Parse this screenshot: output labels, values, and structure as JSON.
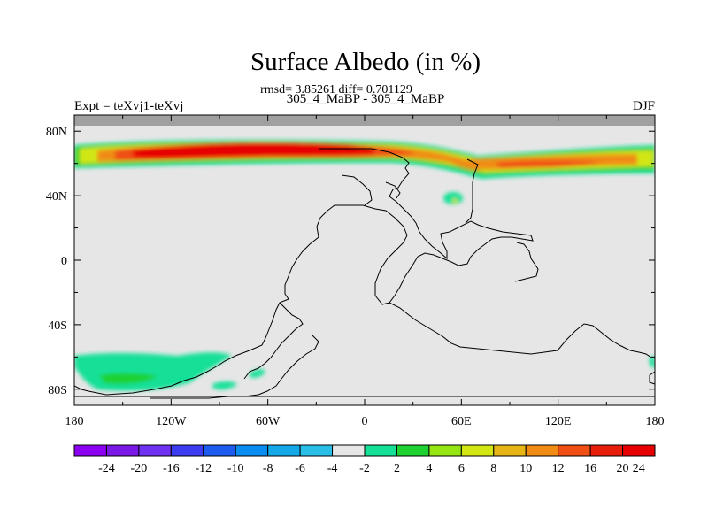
{
  "title": "Surface Albedo (in %)",
  "stats": "rmsd= 3.85261 diff= 0.701129",
  "subtitle": "305_4_MaBP - 305_4_MaBP",
  "left_label": "Expt = teXvj1-teXvj",
  "right_label": "DJF",
  "chart_data": {
    "type": "heatmap",
    "projection": "cylindrical-equidistant",
    "lon_range": [
      -180,
      180
    ],
    "lat_range": [
      -90,
      90
    ],
    "x_ticks": [
      {
        "lon": -180,
        "label": "180"
      },
      {
        "lon": -120,
        "label": "120W"
      },
      {
        "lon": -60,
        "label": "60W"
      },
      {
        "lon": 0,
        "label": "0"
      },
      {
        "lon": 60,
        "label": "60E"
      },
      {
        "lon": 120,
        "label": "120E"
      },
      {
        "lon": 180,
        "label": "180"
      }
    ],
    "y_ticks": [
      {
        "lat": 80,
        "label": "80N"
      },
      {
        "lat": 40,
        "label": "40N"
      },
      {
        "lat": 0,
        "label": "0"
      },
      {
        "lat": -40,
        "label": "40S"
      },
      {
        "lat": -80,
        "label": "80S"
      }
    ],
    "missing_lat_above": 84,
    "colorbar": {
      "colors": [
        "#8b00f0",
        "#7a18e6",
        "#6f32f0",
        "#3c3cf0",
        "#1e5cf0",
        "#0a8cf0",
        "#14a8e8",
        "#28bee6",
        "#e6e6e6",
        "#14e098",
        "#1ed232",
        "#96e614",
        "#d2e614",
        "#e6b414",
        "#f08c14",
        "#f05014",
        "#e61e0a",
        "#e60000"
      ],
      "labels": [
        "-24",
        "-20",
        "-16",
        "-12",
        "-10",
        "-8",
        "-6",
        "-4",
        "-2",
        "2",
        "4",
        "6",
        "8",
        "10",
        "12",
        "16",
        "20",
        "24"
      ]
    },
    "features": [
      {
        "name": "northern-band",
        "description_levels": "high positive anomaly band 55N-72N, peaks >24 near 120W-60W and 80E-130E"
      },
      {
        "name": "southern-patches",
        "description_levels": "moderate positive anomaly (4-6) patches 55S-85S, 170W-100W"
      }
    ]
  }
}
